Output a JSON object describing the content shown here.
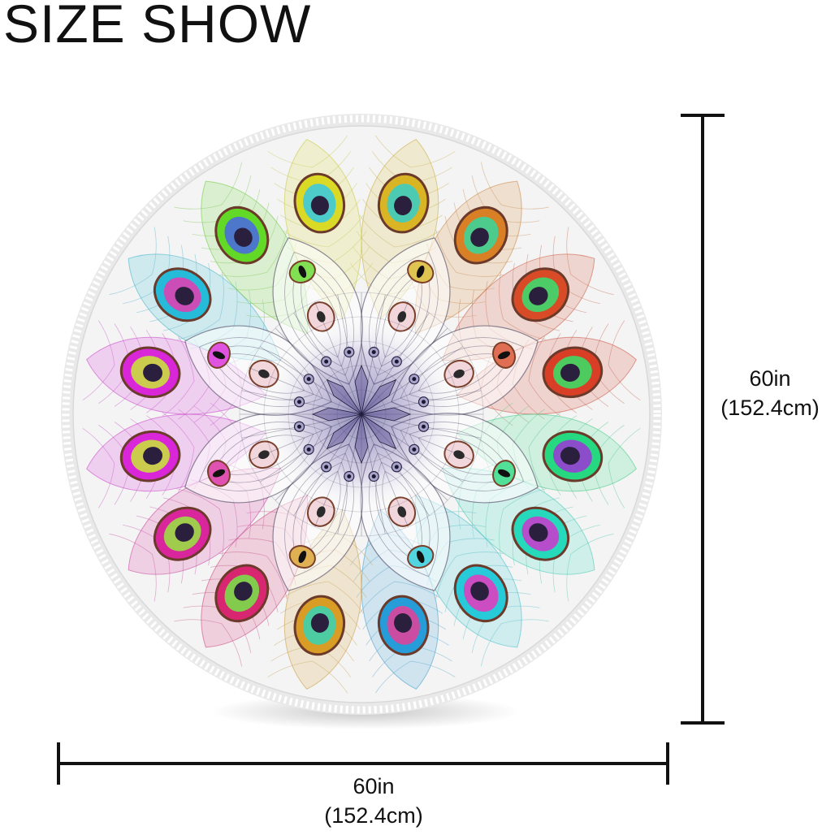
{
  "header": {
    "title": "SIZE SHOW"
  },
  "vertical_dimension": {
    "value": "60in",
    "metric": "(152.4cm)"
  },
  "horizontal_dimension": {
    "value": "60in",
    "metric": "(152.4cm)"
  },
  "product": {
    "shape": "round rug",
    "pattern": "peacock-feather-mandala",
    "border": "white tassel fringe"
  },
  "colors": {
    "background": "#ffffff",
    "rug_base": "#f2f2f2",
    "lines": "#111111"
  }
}
